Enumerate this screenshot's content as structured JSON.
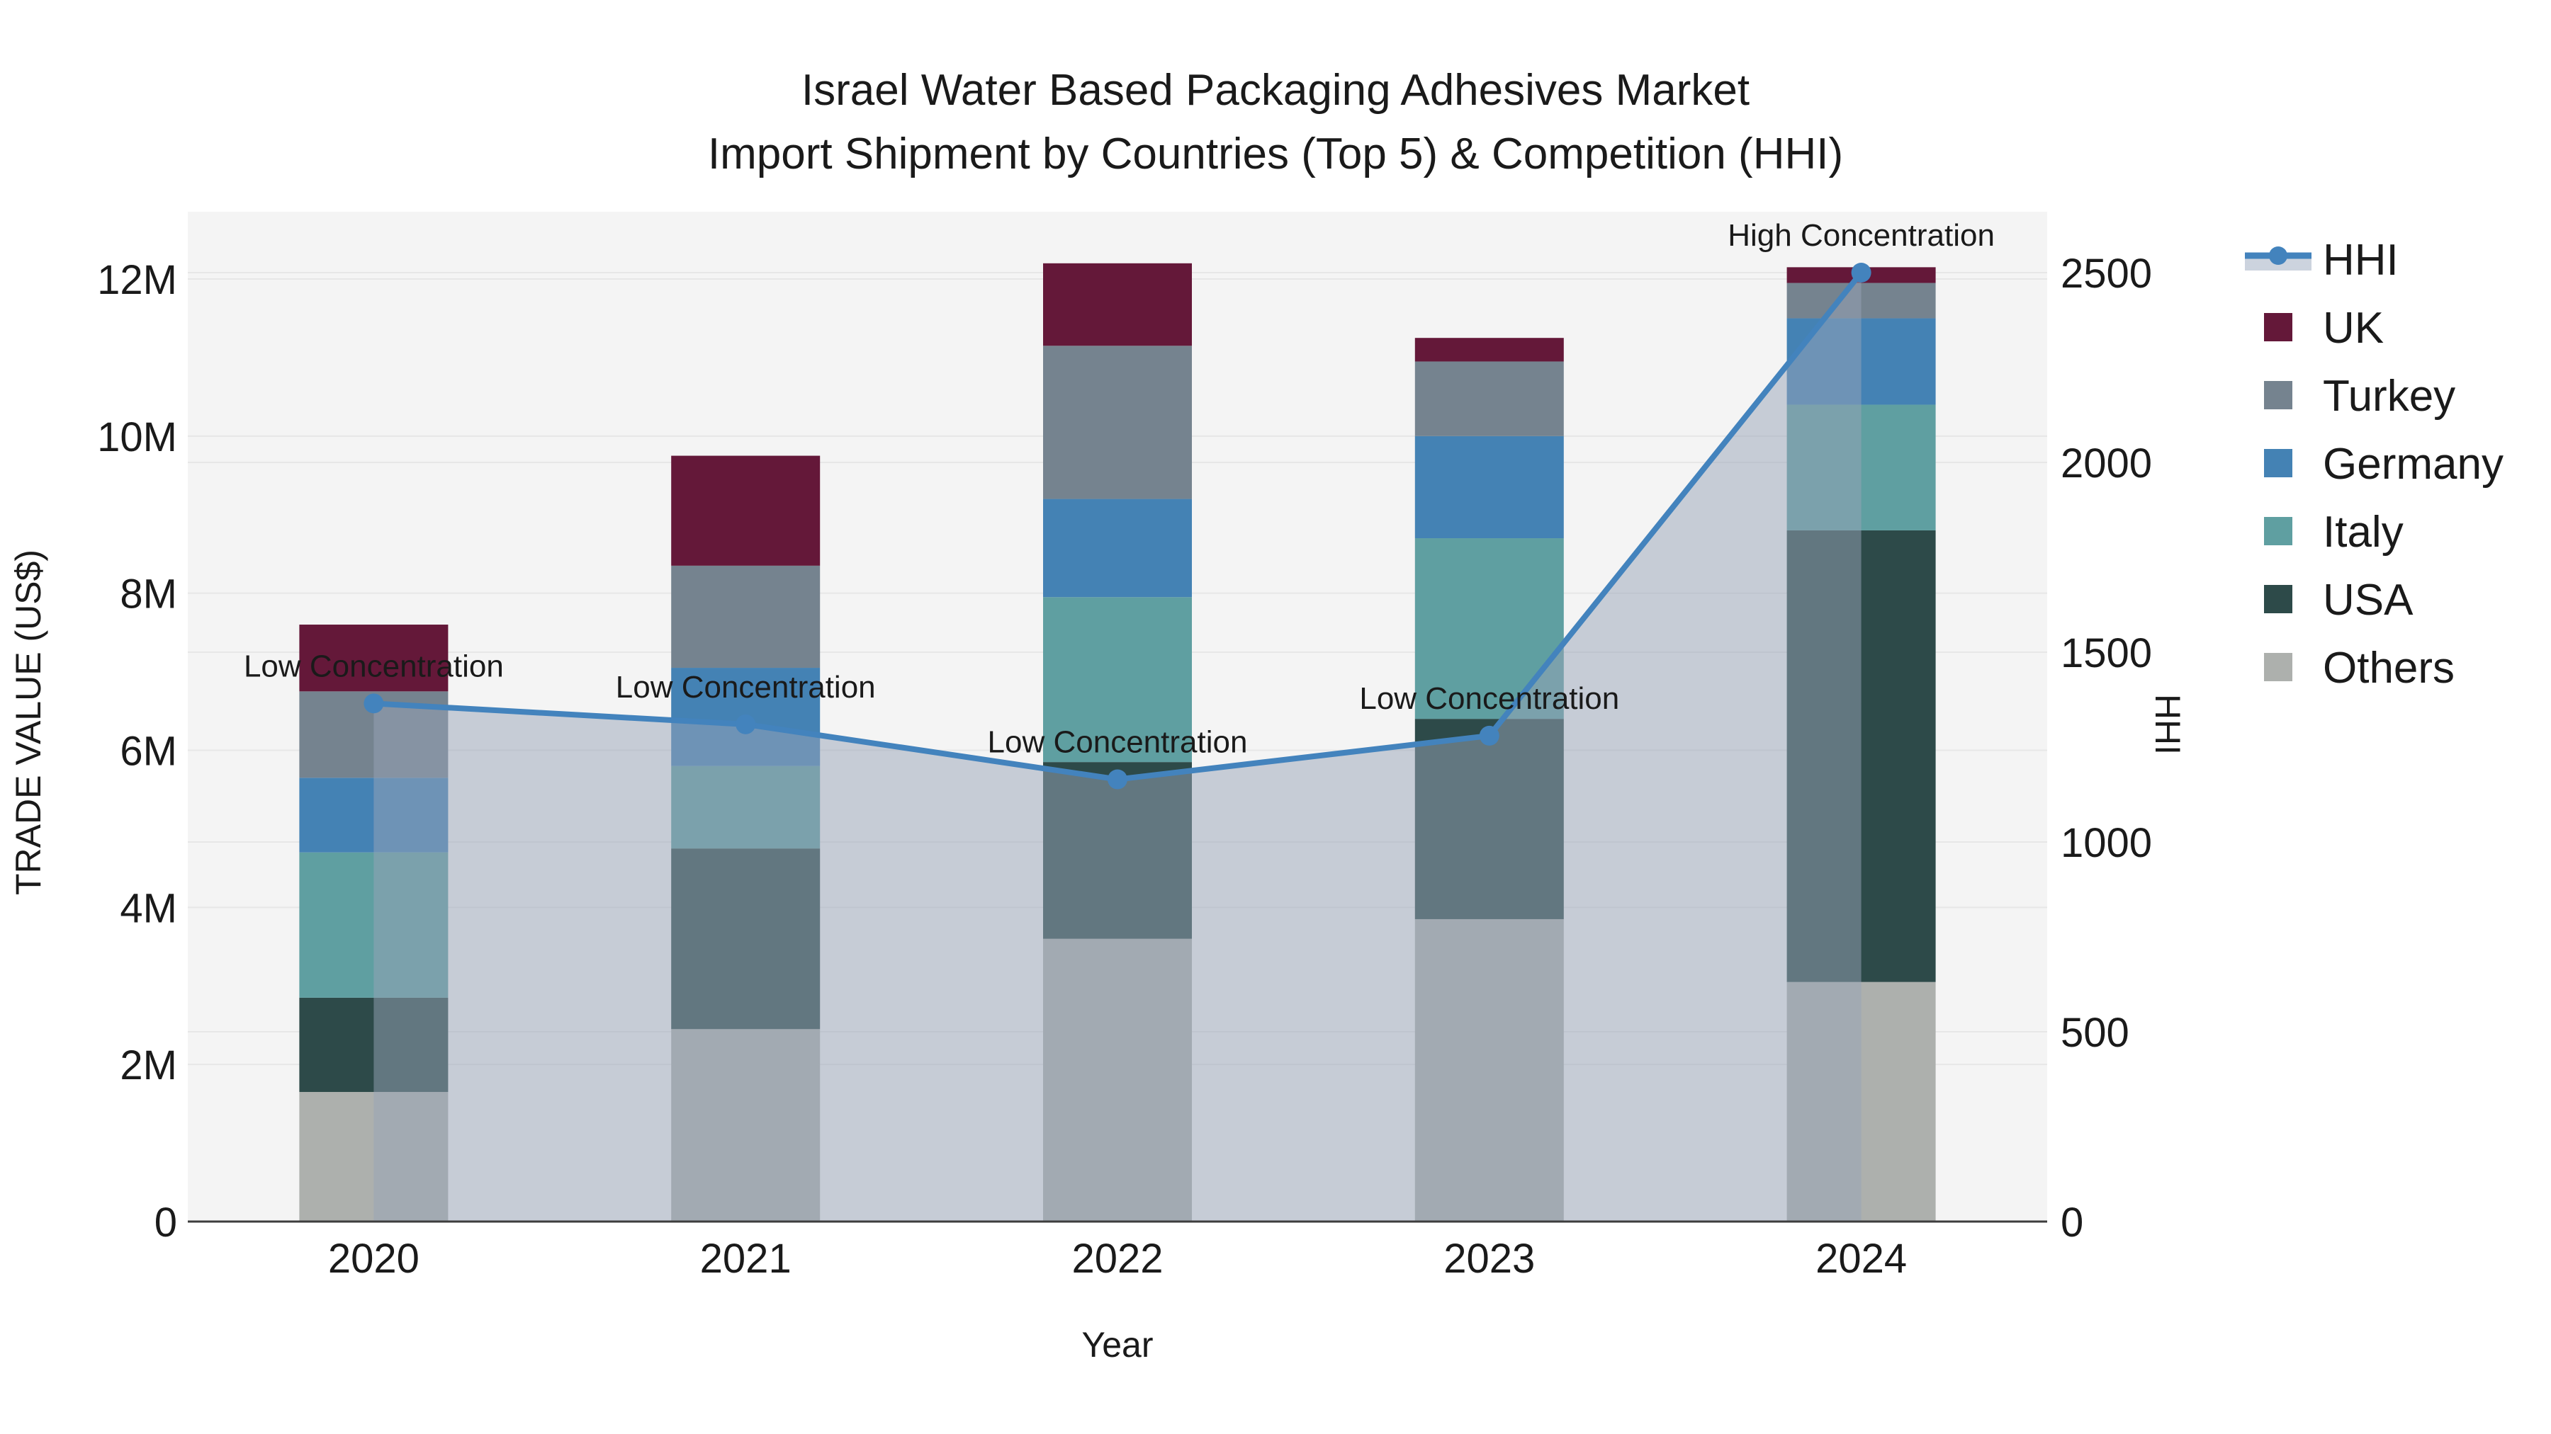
{
  "title": {
    "line1": "Israel Water Based Packaging Adhesives Market",
    "line2": "Import Shipment by Countries (Top 5) & Competition (HHI)"
  },
  "x_axis": {
    "title": "Year",
    "tick_labels": [
      "2020",
      "2021",
      "2022",
      "2023",
      "2024"
    ]
  },
  "y_left": {
    "title": "TRADE VALUE (US$)",
    "tick_labels": [
      "0",
      "2M",
      "4M",
      "6M",
      "8M",
      "10M",
      "12M"
    ],
    "tick_values_musd": [
      0,
      2,
      4,
      6,
      8,
      10,
      12
    ],
    "max_musd": 12.9
  },
  "y_right": {
    "title": "HHI",
    "tick_labels": [
      "0",
      "500",
      "1000",
      "1500",
      "2000",
      "2500"
    ],
    "tick_values": [
      0,
      500,
      1000,
      1500,
      2000,
      2500
    ],
    "max": 2660
  },
  "legend": {
    "items": [
      {
        "label": "HHI",
        "type": "line-marker",
        "color": "#4383bd",
        "band_color": "#ccd3de"
      },
      {
        "label": "UK",
        "type": "swatch",
        "color": "#641839"
      },
      {
        "label": "Turkey",
        "type": "swatch",
        "color": "#75838f"
      },
      {
        "label": "Germany",
        "type": "swatch",
        "color": "#4482b4"
      },
      {
        "label": "Italy",
        "type": "swatch",
        "color": "#5f9fa1"
      },
      {
        "label": "USA",
        "type": "swatch",
        "color": "#2d4a49"
      },
      {
        "label": "Others",
        "type": "swatch",
        "color": "#adb0ad"
      }
    ]
  },
  "colors": {
    "plot_background": "#f4f4f4",
    "gridline": "#e7e7e7",
    "axis_line": "#3d3d3d",
    "hhi_line": "#4383bd",
    "hhi_area_fill": "rgba(152,164,184,0.5)",
    "text": "#1a1a1a"
  },
  "chart_data": {
    "type": "bar+line",
    "subtype": "stacked bars (trade value, left axis) with HHI line+area (right axis)",
    "categories": [
      "2020",
      "2021",
      "2022",
      "2023",
      "2024"
    ],
    "bar_value_unit": "million US$",
    "series": [
      {
        "name": "Others",
        "color": "#adb0ad",
        "values": [
          1.65,
          2.45,
          3.6,
          3.85,
          3.05
        ]
      },
      {
        "name": "USA",
        "color": "#2d4a49",
        "values": [
          1.2,
          2.3,
          2.25,
          2.55,
          5.75
        ]
      },
      {
        "name": "Italy",
        "color": "#5f9fa1",
        "values": [
          1.85,
          1.05,
          2.1,
          2.3,
          1.6
        ]
      },
      {
        "name": "Germany",
        "color": "#4482b4",
        "values": [
          0.95,
          1.25,
          1.25,
          1.3,
          1.1
        ]
      },
      {
        "name": "Turkey",
        "color": "#75838f",
        "values": [
          1.1,
          1.3,
          1.95,
          0.95,
          0.45
        ]
      },
      {
        "name": "UK",
        "color": "#641839",
        "values": [
          0.85,
          1.4,
          1.05,
          0.3,
          0.2
        ]
      }
    ],
    "bar_totals_musd": [
      7.6,
      9.75,
      12.2,
      11.25,
      12.15
    ],
    "line": {
      "name": "HHI",
      "color": "#4383bd",
      "area_fill": "rgba(152,164,184,0.5)",
      "values": [
        1365,
        1310,
        1165,
        1280,
        2500
      ]
    },
    "annotations": [
      {
        "year": "2020",
        "text": "Low Concentration"
      },
      {
        "year": "2021",
        "text": "Low Concentration"
      },
      {
        "year": "2022",
        "text": "Low Concentration"
      },
      {
        "year": "2023",
        "text": "Low Concentration"
      },
      {
        "year": "2024",
        "text": "High Concentration"
      }
    ],
    "legend_position": "right",
    "grid": true
  }
}
